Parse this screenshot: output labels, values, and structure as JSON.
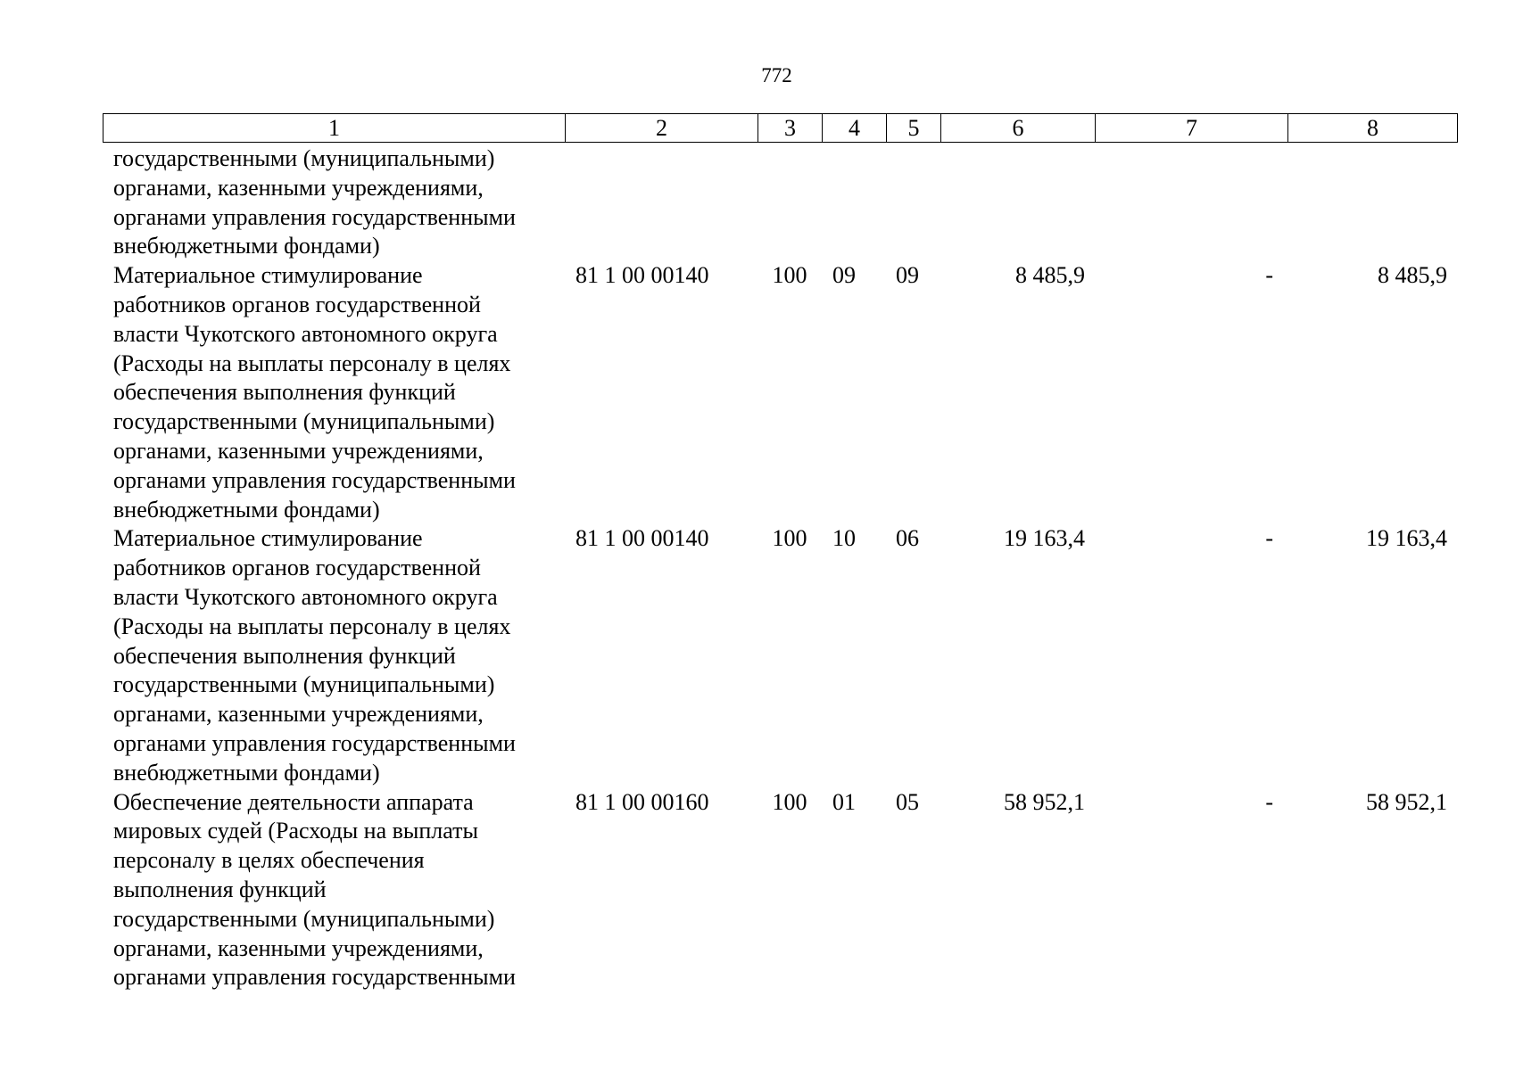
{
  "page_number": "772",
  "header": [
    "1",
    "2",
    "3",
    "4",
    "5",
    "6",
    "7",
    "8"
  ],
  "rows": [
    {
      "name": "государственными (муниципальными)\nорганами, казенными учреждениями,\nорганами управления государственными\nвнебюджетными фондами)",
      "code": "",
      "vr": "",
      "rz": "",
      "pr": "",
      "sum1": "",
      "sum2": "",
      "sum3": ""
    },
    {
      "name": "Материальное стимулирование\nработников органов государственной\nвласти Чукотского автономного округа\n(Расходы на выплаты персоналу в целях\nобеспечения выполнения функций\nгосударственными (муниципальными)\nорганами, казенными учреждениями,\nорганами управления государственными\nвнебюджетными фондами)",
      "code": "81 1 00 00140",
      "vr": "100",
      "rz": "09",
      "pr": "09",
      "sum1": "8 485,9",
      "sum2": "-",
      "sum3": "8 485,9"
    },
    {
      "name": "Материальное стимулирование\nработников органов государственной\nвласти Чукотского автономного округа\n(Расходы на выплаты персоналу в целях\nобеспечения выполнения функций\nгосударственными (муниципальными)\nорганами, казенными учреждениями,\nорганами управления государственными\nвнебюджетными фондами)",
      "code": "81 1 00 00140",
      "vr": "100",
      "rz": "10",
      "pr": "06",
      "sum1": "19 163,4",
      "sum2": "-",
      "sum3": "19 163,4"
    },
    {
      "name": "Обеспечение деятельности аппарата\nмировых судей (Расходы на выплаты\nперсоналу в целях обеспечения\nвыполнения функций\nгосударственными (муниципальными)\nорганами, казенными учреждениями,\nорганами управления государственными",
      "code": "81 1 00 00160",
      "vr": "100",
      "rz": "01",
      "pr": "05",
      "sum1": "58 952,1",
      "sum2": "-",
      "sum3": "58 952,1"
    }
  ]
}
